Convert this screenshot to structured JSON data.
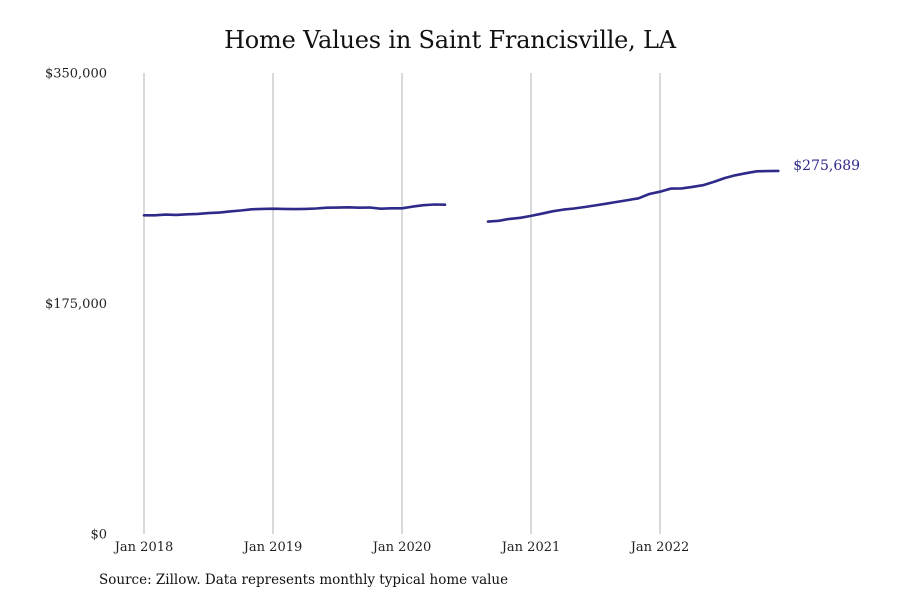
{
  "chart_data": {
    "type": "line",
    "title": "Home Values in Saint Francisville, LA",
    "xlabel": "",
    "ylabel": "",
    "ylim": [
      0,
      350000
    ],
    "yticks": [
      {
        "value": 0,
        "label": "$0"
      },
      {
        "value": 175000,
        "label": "$175,000"
      },
      {
        "value": 350000,
        "label": "$350,000"
      }
    ],
    "xticks": [
      {
        "value": 2018.0,
        "label": "Jan 2018"
      },
      {
        "value": 2019.0,
        "label": "Jan 2019"
      },
      {
        "value": 2020.0,
        "label": "Jan 2020"
      },
      {
        "value": 2021.0,
        "label": "Jan 2021"
      },
      {
        "value": 2022.0,
        "label": "Jan 2022"
      }
    ],
    "grid": {
      "vertical": true,
      "horizontal": false
    },
    "legend": "none",
    "series": [
      {
        "color": "#2e2a8a",
        "end_label": "$275,689",
        "segments": [
          [
            [
              "2018-01",
              242000
            ],
            [
              "2018-02",
              242000
            ],
            [
              "2018-03",
              242500
            ],
            [
              "2018-04",
              242300
            ],
            [
              "2018-05",
              242700
            ],
            [
              "2018-06",
              243000
            ],
            [
              "2018-07",
              243600
            ],
            [
              "2018-08",
              244000
            ],
            [
              "2018-09",
              244900
            ],
            [
              "2018-10",
              245600
            ],
            [
              "2018-11",
              246500
            ],
            [
              "2018-12",
              246800
            ],
            [
              "2019-01",
              247000
            ],
            [
              "2019-02",
              246800
            ],
            [
              "2019-03",
              246700
            ],
            [
              "2019-04",
              246800
            ],
            [
              "2019-05",
              247100
            ],
            [
              "2019-06",
              247700
            ],
            [
              "2019-07",
              247800
            ],
            [
              "2019-08",
              248000
            ],
            [
              "2019-09",
              247700
            ],
            [
              "2019-10",
              247900
            ],
            [
              "2019-11",
              247000
            ],
            [
              "2019-12",
              247300
            ],
            [
              "2020-01",
              247300
            ],
            [
              "2020-02",
              248600
            ],
            [
              "2020-03",
              249600
            ],
            [
              "2020-04",
              250200
            ],
            [
              "2020-05",
              250000
            ]
          ],
          [
            [
              "2020-09",
              237200
            ],
            [
              "2020-10",
              237800
            ],
            [
              "2020-11",
              239200
            ],
            [
              "2020-12",
              240100
            ],
            [
              "2021-01",
              241500
            ],
            [
              "2021-02",
              243200
            ],
            [
              "2021-03",
              245000
            ],
            [
              "2021-04",
              246300
            ],
            [
              "2021-05",
              247100
            ],
            [
              "2021-06",
              248300
            ],
            [
              "2021-07",
              249500
            ],
            [
              "2021-08",
              250800
            ],
            [
              "2021-09",
              252100
            ],
            [
              "2021-10",
              253500
            ],
            [
              "2021-11",
              254900
            ],
            [
              "2021-12",
              258100
            ],
            [
              "2022-01",
              259900
            ],
            [
              "2022-02",
              262200
            ],
            [
              "2022-03",
              262400
            ],
            [
              "2022-04",
              263500
            ],
            [
              "2022-05",
              264800
            ],
            [
              "2022-06",
              267300
            ],
            [
              "2022-07",
              270200
            ],
            [
              "2022-08",
              272300
            ],
            [
              "2022-09",
              273900
            ],
            [
              "2022-10",
              275400
            ],
            [
              "2022-11",
              275500
            ],
            [
              "2022-12",
              275689
            ]
          ]
        ]
      }
    ]
  },
  "source_note": "Source: Zillow. Data represents monthly typical home value"
}
